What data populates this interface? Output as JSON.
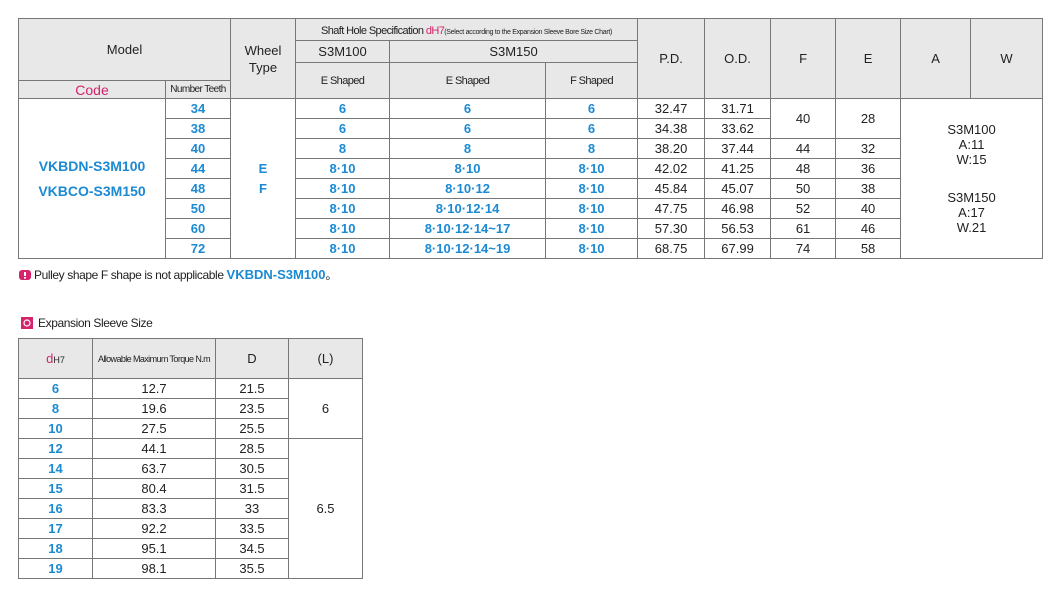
{
  "main_table": {
    "headers": {
      "model": "Model",
      "code": "Code",
      "number_teeth": "Number Teeth",
      "wheel_type": "Wheel Type",
      "shaft_title": "Shaft Hole Specification ",
      "shaft_d": "dH7",
      "shaft_note": "(Select according to the Expansion Sleeve Bore Size Chart)",
      "s3m100": "S3M100",
      "s3m150": "S3M150",
      "e_shaped": "E Shaped",
      "e_shaped_2": "E Shaped",
      "f_shaped": "F Shaped",
      "pd": "P.D.",
      "od": "O.D.",
      "f": "F",
      "e": "E",
      "a": "A",
      "w": "W"
    },
    "model_codes": [
      "VKBDN-S3M100",
      "VKBCO-S3M150"
    ],
    "wheel_types": [
      "E",
      "F"
    ],
    "rows": [
      {
        "teeth": "34",
        "e100": "6",
        "e150": "6",
        "f150": "6",
        "pd": "32.47",
        "od": "31.71"
      },
      {
        "teeth": "38",
        "e100": "6",
        "e150": "6",
        "f150": "6",
        "pd": "34.38",
        "od": "33.62"
      },
      {
        "teeth": "40",
        "e100": "8",
        "e150": "8",
        "f150": "8",
        "pd": "38.20",
        "od": "37.44"
      },
      {
        "teeth": "44",
        "e100": "8·10",
        "e150": "8·10",
        "f150": "8·10",
        "pd": "42.02",
        "od": "41.25"
      },
      {
        "teeth": "48",
        "e100": "8·10",
        "e150": "8·10·12",
        "f150": "8·10",
        "pd": "45.84",
        "od": "45.07"
      },
      {
        "teeth": "50",
        "e100": "8·10",
        "e150": "8·10·12·14",
        "f150": "8·10",
        "pd": "47.75",
        "od": "46.98"
      },
      {
        "teeth": "60",
        "e100": "8·10",
        "e150": "8·10·12·14~17",
        "f150": "8·10",
        "pd": "57.30",
        "od": "56.53"
      },
      {
        "teeth": "72",
        "e100": "8·10",
        "e150": "8·10·12·14~19",
        "f150": "8·10",
        "pd": "68.75",
        "od": "67.99"
      }
    ],
    "f_values": [
      "40",
      "44",
      "48",
      "50",
      "52",
      "61",
      "74"
    ],
    "e_values": [
      "28",
      "32",
      "36",
      "38",
      "40",
      "46",
      "58"
    ],
    "aw": [
      [
        "S3M100",
        "A:11",
        "W:15"
      ],
      [
        "S3M150",
        "A:17",
        "W.21"
      ]
    ]
  },
  "note": {
    "text": "Pulley shape F shape is not applicable ",
    "model": "VKBDN-S3M100",
    "end": "。"
  },
  "sleeve": {
    "title": "Expansion Sleeve Size",
    "headers": {
      "d": "d",
      "d_sub": "H7",
      "torque": "Allowable Maximum Torque N.m",
      "D": "D",
      "L": "(L)"
    },
    "rows": [
      [
        "6",
        "12.7",
        "21.5"
      ],
      [
        "8",
        "19.6",
        "23.5"
      ],
      [
        "10",
        "27.5",
        "25.5"
      ],
      [
        "12",
        "44.1",
        "28.5"
      ],
      [
        "14",
        "63.7",
        "30.5"
      ],
      [
        "15",
        "80.4",
        "31.5"
      ],
      [
        "16",
        "83.3",
        "33"
      ],
      [
        "17",
        "92.2",
        "33.5"
      ],
      [
        "18",
        "95.1",
        "34.5"
      ],
      [
        "19",
        "98.1",
        "35.5"
      ]
    ],
    "l_values": [
      "6",
      "6.5"
    ]
  }
}
